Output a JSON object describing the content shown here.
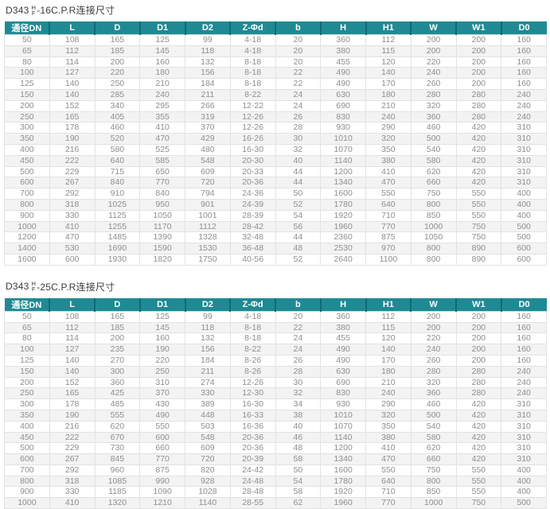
{
  "tables": [
    {
      "id": "pn16",
      "title": {
        "prefix": "D343",
        "frac_top": "H",
        "frac_bottom": "F",
        "suffix": "-16C.P.R连接尺寸"
      },
      "columns": [
        "通径DN",
        "L",
        "D",
        "D1",
        "D2",
        "Z-Φd",
        "b",
        "H",
        "H1",
        "W",
        "W1",
        "D0"
      ],
      "rows": [
        [
          "50",
          "108",
          "165",
          "125",
          "99",
          "4-18",
          "20",
          "360",
          "112",
          "200",
          "200",
          "160"
        ],
        [
          "65",
          "112",
          "185",
          "145",
          "118",
          "4-18",
          "20",
          "380",
          "115",
          "200",
          "200",
          "160"
        ],
        [
          "80",
          "114",
          "200",
          "160",
          "132",
          "8-18",
          "20",
          "455",
          "120",
          "220",
          "200",
          "160"
        ],
        [
          "100",
          "127",
          "220",
          "180",
          "156",
          "8-18",
          "22",
          "490",
          "140",
          "240",
          "200",
          "160"
        ],
        [
          "125",
          "140",
          "250",
          "210",
          "184",
          "8-18",
          "22",
          "490",
          "170",
          "260",
          "200",
          "160"
        ],
        [
          "150",
          "140",
          "285",
          "240",
          "211",
          "8-22",
          "24",
          "630",
          "180",
          "280",
          "280",
          "240"
        ],
        [
          "200",
          "152",
          "340",
          "295",
          "266",
          "12-22",
          "24",
          "690",
          "210",
          "320",
          "280",
          "240"
        ],
        [
          "250",
          "165",
          "405",
          "355",
          "319",
          "12-26",
          "26",
          "830",
          "240",
          "360",
          "280",
          "240"
        ],
        [
          "300",
          "178",
          "460",
          "410",
          "370",
          "12-26",
          "28",
          "930",
          "290",
          "460",
          "420",
          "310"
        ],
        [
          "350",
          "190",
          "520",
          "470",
          "429",
          "16-26",
          "30",
          "1010",
          "320",
          "500",
          "420",
          "310"
        ],
        [
          "400",
          "216",
          "580",
          "525",
          "480",
          "16-30",
          "32",
          "1070",
          "350",
          "540",
          "420",
          "310"
        ],
        [
          "450",
          "222",
          "640",
          "585",
          "548",
          "20-30",
          "40",
          "1140",
          "380",
          "580",
          "420",
          "310"
        ],
        [
          "500",
          "229",
          "715",
          "650",
          "609",
          "20-33",
          "44",
          "1200",
          "410",
          "620",
          "420",
          "310"
        ],
        [
          "600",
          "267",
          "840",
          "770",
          "720",
          "20-36",
          "44",
          "1340",
          "470",
          "660",
          "420",
          "310"
        ],
        [
          "700",
          "292",
          "910",
          "840",
          "794",
          "24-36",
          "50",
          "1600",
          "550",
          "750",
          "550",
          "400"
        ],
        [
          "800",
          "318",
          "1025",
          "950",
          "901",
          "24-39",
          "52",
          "1780",
          "640",
          "800",
          "550",
          "400"
        ],
        [
          "900",
          "330",
          "1125",
          "1050",
          "1001",
          "28-39",
          "54",
          "1920",
          "710",
          "850",
          "550",
          "400"
        ],
        [
          "1000",
          "410",
          "1255",
          "1170",
          "1112",
          "28-42",
          "56",
          "1960",
          "770",
          "1000",
          "750",
          "500"
        ],
        [
          "1200",
          "470",
          "1485",
          "1390",
          "1328",
          "32-48",
          "44",
          "2360",
          "875",
          "1050",
          "750",
          "500"
        ],
        [
          "1400",
          "530",
          "1690",
          "1590",
          "1530",
          "36-48",
          "48",
          "2530",
          "970",
          "800",
          "890",
          "600"
        ],
        [
          "1600",
          "600",
          "1930",
          "1820",
          "1750",
          "40-56",
          "52",
          "2640",
          "1100",
          "800",
          "890",
          "600"
        ]
      ]
    },
    {
      "id": "pn25",
      "title": {
        "prefix": "D343",
        "frac_top": "H",
        "frac_bottom": "F",
        "suffix": "-25C.P.R连接尺寸"
      },
      "columns": [
        "通径DN",
        "L",
        "D",
        "D1",
        "D2",
        "Z-Φd",
        "b",
        "H",
        "H1",
        "W",
        "W1",
        "D0"
      ],
      "rows": [
        [
          "50",
          "108",
          "165",
          "125",
          "99",
          "4-18",
          "20",
          "360",
          "112",
          "200",
          "200",
          "160"
        ],
        [
          "65",
          "112",
          "185",
          "145",
          "118",
          "8-18",
          "22",
          "380",
          "115",
          "200",
          "200",
          "160"
        ],
        [
          "80",
          "114",
          "200",
          "160",
          "132",
          "8-18",
          "24",
          "455",
          "120",
          "220",
          "200",
          "160"
        ],
        [
          "100",
          "127",
          "235",
          "190",
          "156",
          "8-22",
          "24",
          "490",
          "140",
          "240",
          "200",
          "160"
        ],
        [
          "125",
          "140",
          "270",
          "220",
          "184",
          "8-26",
          "26",
          "490",
          "170",
          "260",
          "200",
          "160"
        ],
        [
          "150",
          "140",
          "300",
          "250",
          "211",
          "8-26",
          "28",
          "630",
          "180",
          "280",
          "280",
          "240"
        ],
        [
          "200",
          "152",
          "360",
          "310",
          "274",
          "12-26",
          "30",
          "690",
          "210",
          "320",
          "280",
          "240"
        ],
        [
          "250",
          "165",
          "425",
          "370",
          "330",
          "12-30",
          "32",
          "830",
          "240",
          "360",
          "280",
          "240"
        ],
        [
          "300",
          "178",
          "485",
          "430",
          "389",
          "16-30",
          "34",
          "930",
          "290",
          "460",
          "420",
          "310"
        ],
        [
          "350",
          "190",
          "555",
          "490",
          "448",
          "16-33",
          "38",
          "1010",
          "320",
          "500",
          "420",
          "310"
        ],
        [
          "400",
          "216",
          "620",
          "550",
          "503",
          "16-36",
          "40",
          "1070",
          "350",
          "540",
          "420",
          "310"
        ],
        [
          "450",
          "222",
          "670",
          "600",
          "548",
          "20-36",
          "46",
          "1140",
          "380",
          "580",
          "420",
          "310"
        ],
        [
          "500",
          "229",
          "730",
          "660",
          "609",
          "20-36",
          "48",
          "1200",
          "410",
          "620",
          "420",
          "310"
        ],
        [
          "600",
          "267",
          "845",
          "770",
          "720",
          "20-39",
          "58",
          "1340",
          "470",
          "660",
          "420",
          "310"
        ],
        [
          "700",
          "292",
          "960",
          "875",
          "820",
          "24-42",
          "50",
          "1600",
          "550",
          "750",
          "550",
          "400"
        ],
        [
          "800",
          "318",
          "1085",
          "990",
          "928",
          "24-48",
          "54",
          "1780",
          "640",
          "800",
          "550",
          "400"
        ],
        [
          "900",
          "330",
          "1185",
          "1090",
          "1028",
          "28-48",
          "58",
          "1920",
          "710",
          "850",
          "550",
          "400"
        ],
        [
          "1000",
          "410",
          "1320",
          "1210",
          "1140",
          "28-55",
          "62",
          "1960",
          "770",
          "1000",
          "750",
          "500"
        ]
      ]
    }
  ],
  "colors": {
    "header_bg": "#1f8a93",
    "header_divider": "#0e6a74",
    "row_stripe": "#f3f3f3",
    "cell_border": "#e2e2e2",
    "data_text": "#8e8e8e",
    "title_text": "#3b3b3b"
  }
}
